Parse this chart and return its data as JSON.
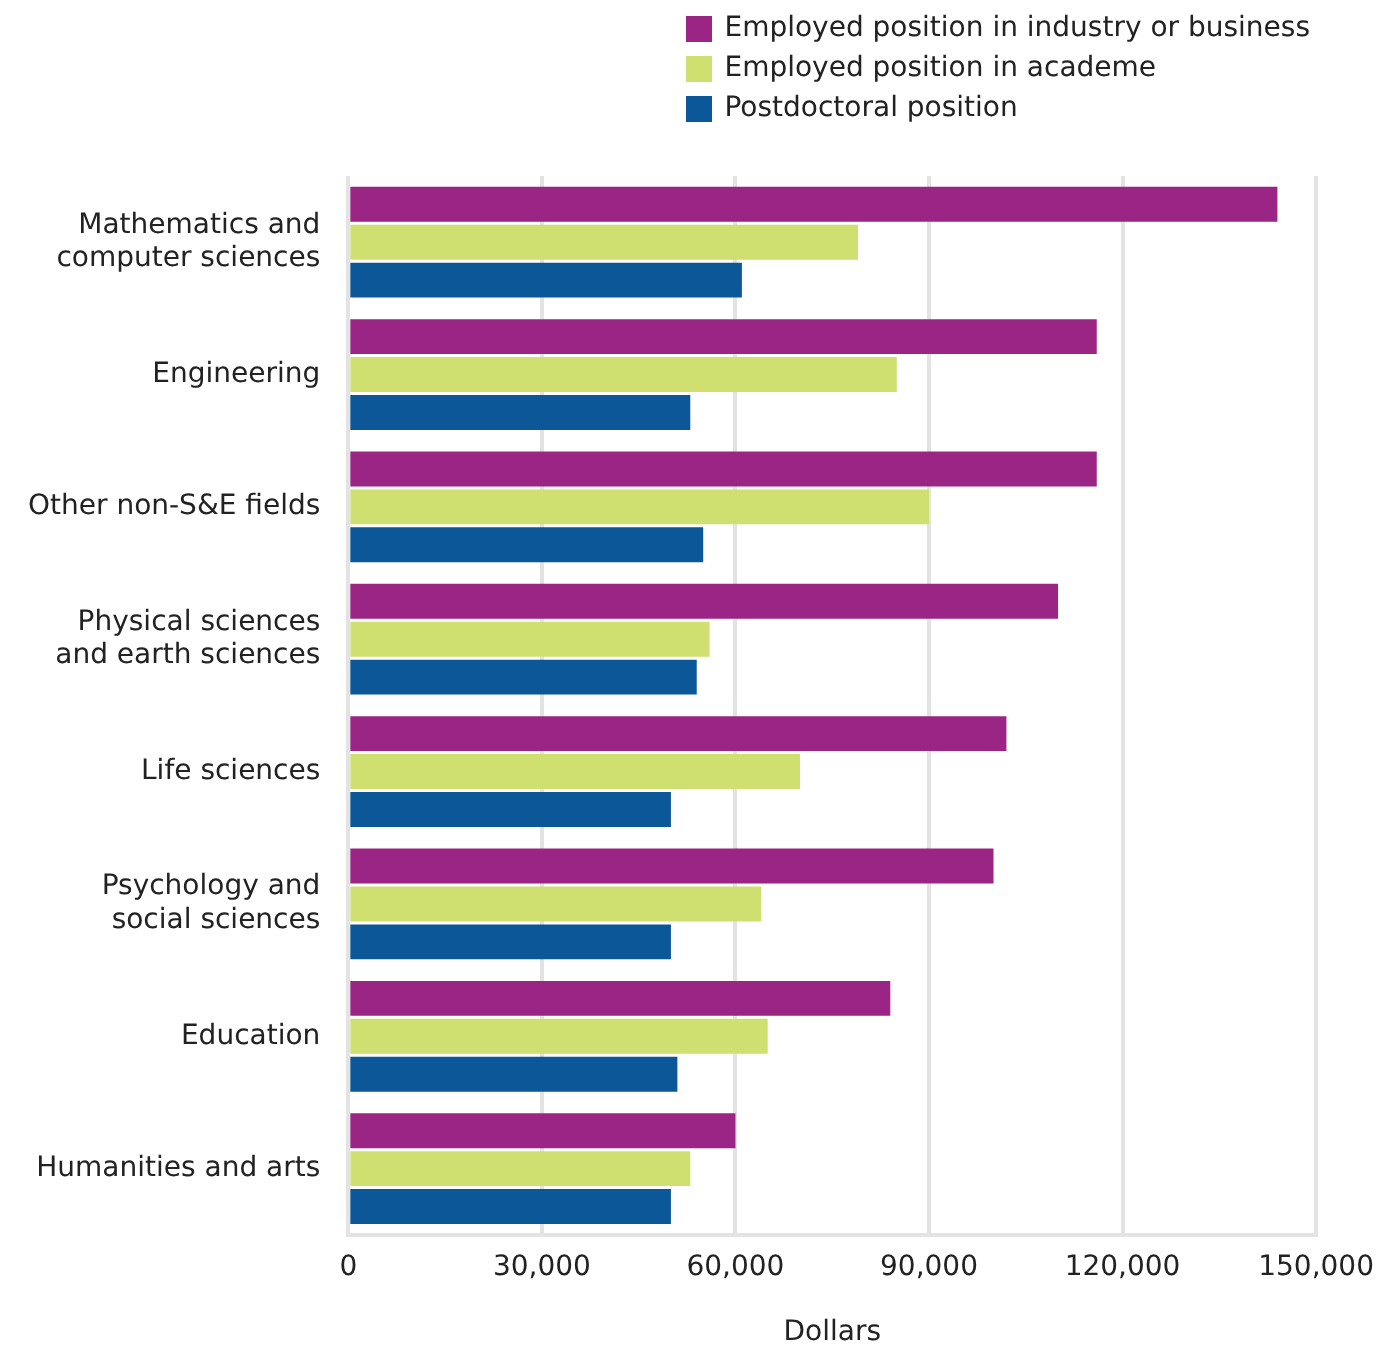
{
  "chart_data": {
    "type": "bar",
    "orientation": "horizontal",
    "xlabel": "Dollars",
    "categories": [
      "Mathematics and computer sciences",
      "Engineering",
      "Other non-S&E fields",
      "Physical sciences and earth sciences",
      "Life sciences",
      "Psychology and social sciences",
      "Education",
      "Humanities and arts"
    ],
    "series": [
      {
        "name": "Employed position in industry or business",
        "color": "#9b2585",
        "values": [
          144000,
          116000,
          116000,
          110000,
          102000,
          100000,
          84000,
          60000
        ]
      },
      {
        "name": "Employed position in academe",
        "color": "#cfdf70",
        "values": [
          79000,
          85000,
          90000,
          56000,
          70000,
          64000,
          65000,
          53000
        ]
      },
      {
        "name": "Postdoctoral position",
        "color": "#0b5797",
        "values": [
          61000,
          53000,
          55000,
          54000,
          50000,
          50000,
          51000,
          50000
        ]
      }
    ],
    "xlim": [
      0,
      150000
    ],
    "xticks": [
      0,
      {
        "value": 30000,
        "label": "30,000"
      },
      {
        "value": 60000,
        "label": "60,000"
      },
      {
        "value": 90000,
        "label": "90,000"
      },
      {
        "value": 120000,
        "label": "120,000"
      },
      {
        "value": 150000,
        "label": "150,000"
      }
    ],
    "grid": "x",
    "legend": "top right"
  }
}
